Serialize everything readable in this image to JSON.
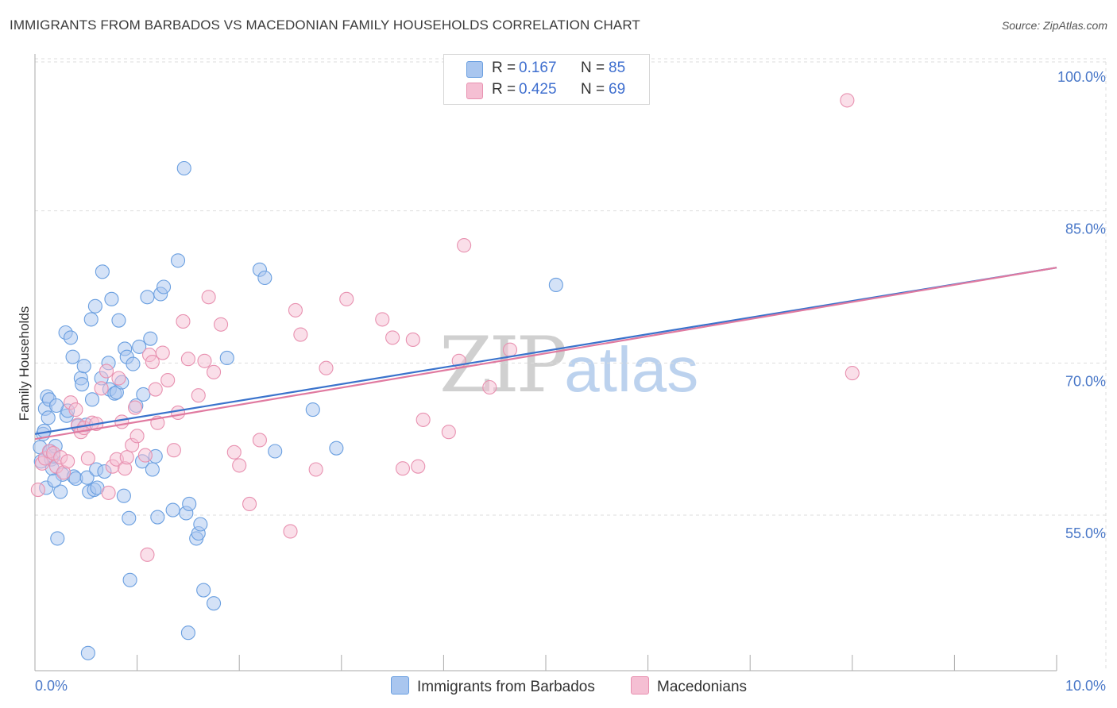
{
  "title": "IMMIGRANTS FROM BARBADOS VS MACEDONIAN FAMILY HOUSEHOLDS CORRELATION CHART",
  "source": "Source: ZipAtlas.com",
  "watermark": {
    "zip": "ZIP",
    "atlas": "atlas"
  },
  "colors": {
    "blue": "#6a9fe0",
    "blue_fill": "#a9c6ef",
    "blue_line": "#3a73cc",
    "pink": "#e891b0",
    "pink_fill": "#f5bfd3",
    "pink_line": "#e07aa0",
    "grid": "#dddddd",
    "tick_text": "#4a78c8"
  },
  "legend": {
    "rows": [
      {
        "r_label": "R = ",
        "r_value": "0.167",
        "n_label": "N = ",
        "n_value": "85"
      },
      {
        "r_label": "R = ",
        "r_value": "0.425",
        "n_label": "N = ",
        "n_value": "69"
      }
    ]
  },
  "bottom_legend": {
    "series1": "Immigrants from Barbados",
    "series2": "Macedonians"
  },
  "chart_data": {
    "type": "scatter",
    "title": "IMMIGRANTS FROM BARBADOS VS MACEDONIAN FAMILY HOUSEHOLDS CORRELATION CHART",
    "xlabel": "",
    "ylabel": "Family Households",
    "xlim": [
      0,
      10
    ],
    "ylim": [
      40,
      102
    ],
    "x_tick_labels": [
      "0.0%",
      "10.0%"
    ],
    "y_ticks": [
      55,
      70,
      85,
      100
    ],
    "y_tick_labels": [
      "55.0%",
      "70.0%",
      "85.0%",
      "100.0%"
    ],
    "grid": true,
    "series": [
      {
        "name": "Immigrants from Barbados",
        "color": "#6a9fe0",
        "r": 0.167,
        "n": 85,
        "trend": {
          "x": [
            0,
            10
          ],
          "y": [
            64.8,
            81.2
          ]
        },
        "points": [
          [
            0.05,
            63.5
          ],
          [
            0.06,
            62.1
          ],
          [
            0.08,
            64.8
          ],
          [
            0.1,
            67.3
          ],
          [
            0.12,
            68.5
          ],
          [
            0.13,
            66.4
          ],
          [
            0.15,
            63.1
          ],
          [
            0.16,
            62.3
          ],
          [
            0.17,
            61.4
          ],
          [
            0.18,
            62.6
          ],
          [
            0.2,
            63.6
          ],
          [
            0.22,
            54.5
          ],
          [
            0.25,
            59.1
          ],
          [
            0.27,
            60.8
          ],
          [
            0.3,
            74.8
          ],
          [
            0.31,
            66.6
          ],
          [
            0.32,
            67.1
          ],
          [
            0.35,
            74.3
          ],
          [
            0.37,
            72.4
          ],
          [
            0.38,
            60.6
          ],
          [
            0.4,
            60.4
          ],
          [
            0.42,
            65.6
          ],
          [
            0.45,
            70.3
          ],
          [
            0.46,
            69.7
          ],
          [
            0.48,
            71.5
          ],
          [
            0.5,
            65.7
          ],
          [
            0.51,
            60.5
          ],
          [
            0.52,
            43.2
          ],
          [
            0.53,
            59.1
          ],
          [
            0.55,
            76.1
          ],
          [
            0.56,
            68.2
          ],
          [
            0.58,
            59.3
          ],
          [
            0.59,
            77.4
          ],
          [
            0.6,
            61.3
          ],
          [
            0.61,
            59.5
          ],
          [
            0.65,
            70.3
          ],
          [
            0.66,
            80.8
          ],
          [
            0.68,
            61.1
          ],
          [
            0.72,
            71.8
          ],
          [
            0.73,
            69.2
          ],
          [
            0.75,
            78.1
          ],
          [
            0.78,
            68.8
          ],
          [
            0.8,
            68.9
          ],
          [
            0.82,
            76.0
          ],
          [
            0.85,
            69.9
          ],
          [
            0.87,
            58.7
          ],
          [
            0.88,
            73.2
          ],
          [
            0.9,
            72.4
          ],
          [
            0.92,
            56.5
          ],
          [
            0.93,
            50.4
          ],
          [
            0.96,
            71.7
          ],
          [
            0.99,
            67.6
          ],
          [
            1.02,
            73.4
          ],
          [
            1.05,
            62.1
          ],
          [
            1.06,
            68.7
          ],
          [
            1.1,
            78.3
          ],
          [
            1.13,
            74.2
          ],
          [
            1.15,
            61.3
          ],
          [
            1.18,
            62.6
          ],
          [
            1.2,
            56.6
          ],
          [
            1.23,
            78.6
          ],
          [
            1.26,
            79.3
          ],
          [
            1.35,
            57.3
          ],
          [
            1.4,
            81.9
          ],
          [
            1.46,
            91.0
          ],
          [
            1.48,
            57.0
          ],
          [
            1.5,
            45.2
          ],
          [
            1.51,
            57.9
          ],
          [
            1.58,
            54.5
          ],
          [
            1.6,
            55.0
          ],
          [
            1.62,
            55.9
          ],
          [
            1.65,
            49.4
          ],
          [
            1.75,
            48.1
          ],
          [
            1.88,
            72.3
          ],
          [
            2.2,
            81.0
          ],
          [
            2.25,
            80.2
          ],
          [
            2.35,
            63.1
          ],
          [
            2.72,
            67.2
          ],
          [
            2.95,
            63.4
          ],
          [
            5.1,
            79.5
          ],
          [
            0.09,
            65.1
          ],
          [
            0.11,
            59.5
          ],
          [
            0.14,
            68.2
          ],
          [
            0.19,
            60.2
          ],
          [
            0.21,
            67.6
          ]
        ]
      },
      {
        "name": "Macedonians",
        "color": "#e891b0",
        "r": 0.425,
        "n": 69,
        "trend": {
          "x": [
            0,
            10
          ],
          "y": [
            64.3,
            81.2
          ]
        },
        "points": [
          [
            0.03,
            59.3
          ],
          [
            0.07,
            61.9
          ],
          [
            0.1,
            62.4
          ],
          [
            0.14,
            63.1
          ],
          [
            0.18,
            62.9
          ],
          [
            0.21,
            61.6
          ],
          [
            0.25,
            62.5
          ],
          [
            0.28,
            61.0
          ],
          [
            0.32,
            62.1
          ],
          [
            0.35,
            67.9
          ],
          [
            0.4,
            67.2
          ],
          [
            0.42,
            65.7
          ],
          [
            0.45,
            65.0
          ],
          [
            0.48,
            65.4
          ],
          [
            0.52,
            62.4
          ],
          [
            0.56,
            65.9
          ],
          [
            0.6,
            65.8
          ],
          [
            0.65,
            69.3
          ],
          [
            0.7,
            71.0
          ],
          [
            0.72,
            59.0
          ],
          [
            0.76,
            61.6
          ],
          [
            0.8,
            62.3
          ],
          [
            0.82,
            70.3
          ],
          [
            0.85,
            66.0
          ],
          [
            0.88,
            61.4
          ],
          [
            0.9,
            62.5
          ],
          [
            0.95,
            63.7
          ],
          [
            0.98,
            67.4
          ],
          [
            1.0,
            64.6
          ],
          [
            1.08,
            62.7
          ],
          [
            1.1,
            52.9
          ],
          [
            1.12,
            72.6
          ],
          [
            1.15,
            71.9
          ],
          [
            1.18,
            69.2
          ],
          [
            1.2,
            65.9
          ],
          [
            1.25,
            72.8
          ],
          [
            1.3,
            70.1
          ],
          [
            1.36,
            63.2
          ],
          [
            1.4,
            66.9
          ],
          [
            1.45,
            75.9
          ],
          [
            1.5,
            72.2
          ],
          [
            1.6,
            68.6
          ],
          [
            1.66,
            72.0
          ],
          [
            1.7,
            78.3
          ],
          [
            1.75,
            70.9
          ],
          [
            1.82,
            75.6
          ],
          [
            1.95,
            63.0
          ],
          [
            2.0,
            61.7
          ],
          [
            2.1,
            57.9
          ],
          [
            2.2,
            64.2
          ],
          [
            2.5,
            55.2
          ],
          [
            2.55,
            77.0
          ],
          [
            2.6,
            74.6
          ],
          [
            2.75,
            61.3
          ],
          [
            2.85,
            71.3
          ],
          [
            3.05,
            78.1
          ],
          [
            3.4,
            76.1
          ],
          [
            3.5,
            74.3
          ],
          [
            3.6,
            61.4
          ],
          [
            3.7,
            74.1
          ],
          [
            3.75,
            61.6
          ],
          [
            3.8,
            66.2
          ],
          [
            4.05,
            65.0
          ],
          [
            4.15,
            72.0
          ],
          [
            4.2,
            83.4
          ],
          [
            4.45,
            69.4
          ],
          [
            4.65,
            73.1
          ],
          [
            7.95,
            97.7
          ],
          [
            8.0,
            70.8
          ]
        ]
      }
    ]
  }
}
